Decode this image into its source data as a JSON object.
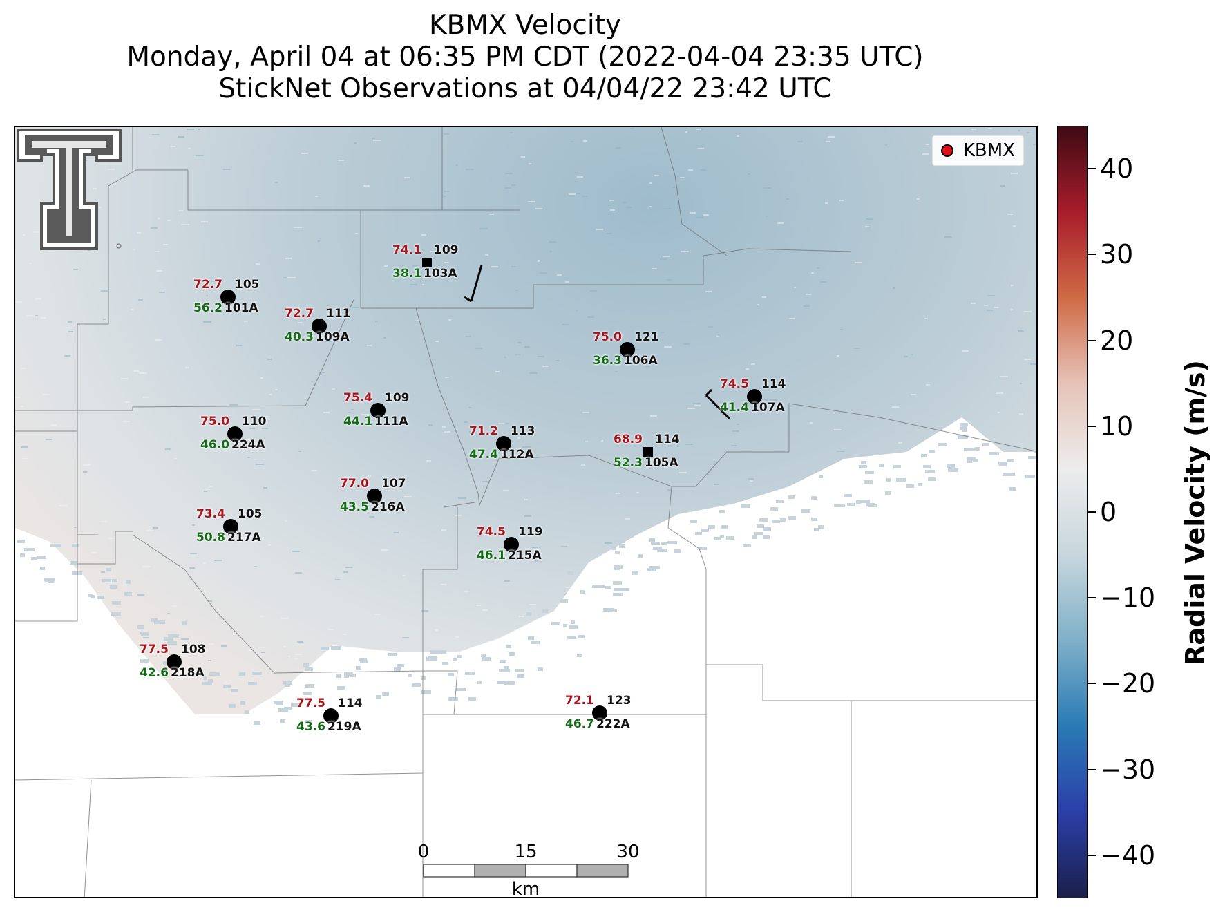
{
  "title": {
    "line1": "KBMX Velocity",
    "line2": "Monday, April 04 at 06:35 PM CDT (2022-04-04 23:35 UTC)",
    "line3": "StickNet Observations at 04/04/22 23:42 UTC"
  },
  "legend": {
    "label": "KBMX",
    "marker_color": "#e0101a"
  },
  "logo": {
    "icon": "texas-tech-double-t-logo"
  },
  "scalebar": {
    "labels": [
      "0",
      "15",
      "30"
    ],
    "unit": "km"
  },
  "colorbar": {
    "title": "Radial Velocity (m/s)",
    "range": [
      -45,
      45
    ],
    "ticks": [
      "40",
      "30",
      "20",
      "10",
      "0",
      "−10",
      "−20",
      "−30",
      "−40"
    ],
    "tick_values": [
      40,
      30,
      20,
      10,
      0,
      -10,
      -20,
      -30,
      -40
    ],
    "colors": [
      "#1b1f4b",
      "#2b3fa8",
      "#2a7ab5",
      "#7fb0c8",
      "#c7d6dd",
      "#ececec",
      "#e6c3b8",
      "#cf6a45",
      "#a81d2b",
      "#3f0a14"
    ]
  },
  "stations": [
    {
      "id": "101A",
      "number": "105",
      "gust": "72.7",
      "wind": "56.2",
      "marker": "circle"
    },
    {
      "id": "109A",
      "number": "111",
      "gust": "72.7",
      "wind": "40.3",
      "marker": "circle"
    },
    {
      "id": "103A",
      "number": "109",
      "gust": "74.1",
      "wind": "38.1",
      "marker": "square"
    },
    {
      "id": "106A",
      "number": "121",
      "gust": "75.0",
      "wind": "36.3",
      "marker": "circle"
    },
    {
      "id": "107A",
      "number": "114",
      "gust": "74.5",
      "wind": "41.4",
      "marker": "circle"
    },
    {
      "id": "111A",
      "number": "109",
      "gust": "75.4",
      "wind": "44.1",
      "marker": "circle"
    },
    {
      "id": "224A",
      "number": "110",
      "gust": "75.0",
      "wind": "46.0",
      "marker": "circle"
    },
    {
      "id": "112A",
      "number": "113",
      "gust": "71.2",
      "wind": "47.4",
      "marker": "circle"
    },
    {
      "id": "105A",
      "number": "114",
      "gust": "68.9",
      "wind": "52.3",
      "marker": "square"
    },
    {
      "id": "216A",
      "number": "107",
      "gust": "77.0",
      "wind": "43.5",
      "marker": "circle"
    },
    {
      "id": "217A",
      "number": "105",
      "gust": "73.4",
      "wind": "50.8",
      "marker": "circle"
    },
    {
      "id": "215A",
      "number": "119",
      "gust": "74.5",
      "wind": "46.1",
      "marker": "circle"
    },
    {
      "id": "218A",
      "number": "108",
      "gust": "77.5",
      "wind": "42.6",
      "marker": "circle"
    },
    {
      "id": "219A",
      "number": "114",
      "gust": "77.5",
      "wind": "43.6",
      "marker": "circle"
    },
    {
      "id": "222A",
      "number": "123",
      "gust": "72.1",
      "wind": "46.7",
      "marker": "circle"
    }
  ]
}
